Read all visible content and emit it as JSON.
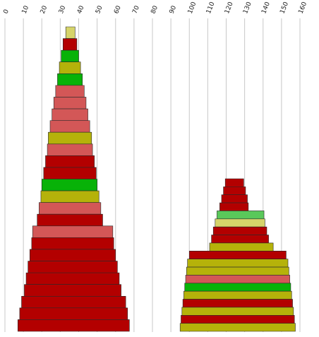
{
  "chart_data": {
    "type": "bar",
    "title": "",
    "xlabel": "",
    "ylabel": "",
    "xlim": [
      0,
      160
    ],
    "x_ticks": [
      "0",
      "10",
      "20",
      "30",
      "40",
      "50",
      "60",
      "70",
      "80",
      "90",
      "100",
      "110",
      "120",
      "130",
      "140",
      "150",
      "160"
    ],
    "grid": true,
    "legend": "none",
    "colors": {
      "red": "#b30000",
      "pink": "#d35757",
      "green": "#08b208",
      "olive": "#b5b20a",
      "yellow": "#d6d46a",
      "light_green": "#5ac85a"
    },
    "stacks": [
      {
        "bands": [
          {
            "x0": 33.0,
            "x1": 38.0,
            "color": "yellow"
          },
          {
            "x0": 31.5,
            "x1": 39.0,
            "color": "red"
          },
          {
            "x0": 30.5,
            "x1": 40.0,
            "color": "green"
          },
          {
            "x0": 29.5,
            "x1": 41.0,
            "color": "olive"
          },
          {
            "x0": 28.5,
            "x1": 42.0,
            "color": "green"
          },
          {
            "x0": 27.5,
            "x1": 43.0,
            "color": "pink"
          },
          {
            "x0": 26.5,
            "x1": 44.0,
            "color": "pink"
          },
          {
            "x0": 25.5,
            "x1": 45.0,
            "color": "pink"
          },
          {
            "x0": 24.5,
            "x1": 46.0,
            "color": "pink"
          },
          {
            "x0": 23.5,
            "x1": 47.0,
            "color": "olive"
          },
          {
            "x0": 23.0,
            "x1": 47.5,
            "color": "pink"
          },
          {
            "x0": 22.0,
            "x1": 48.5,
            "color": "red"
          },
          {
            "x0": 21.0,
            "x1": 49.5,
            "color": "red"
          },
          {
            "x0": 20.0,
            "x1": 50.0,
            "color": "green"
          },
          {
            "x0": 19.5,
            "x1": 51.0,
            "color": "olive"
          },
          {
            "x0": 18.5,
            "x1": 52.0,
            "color": "pink"
          },
          {
            "x0": 17.5,
            "x1": 53.0,
            "color": "red"
          },
          {
            "x0": 15.0,
            "x1": 58.5,
            "color": "pink"
          },
          {
            "x0": 14.5,
            "x1": 59.0,
            "color": "red"
          },
          {
            "x0": 13.5,
            "x1": 60.0,
            "color": "red"
          },
          {
            "x0": 12.5,
            "x1": 61.0,
            "color": "red"
          },
          {
            "x0": 11.5,
            "x1": 62.0,
            "color": "red"
          },
          {
            "x0": 10.5,
            "x1": 63.0,
            "color": "red"
          },
          {
            "x0": 9.0,
            "x1": 65.5,
            "color": "red"
          },
          {
            "x0": 8.0,
            "x1": 66.5,
            "color": "red"
          },
          {
            "x0": 7.0,
            "x1": 67.5,
            "color": "red"
          }
        ]
      },
      {
        "bands": [
          {
            "x0": 119.5,
            "x1": 129.5,
            "color": "red"
          },
          {
            "x0": 118.5,
            "x1": 130.5,
            "color": "red"
          },
          {
            "x0": 117.5,
            "x1": 131.5,
            "color": "red"
          },
          {
            "x0": 116.5,
            "x1": 132.0,
            "color": "red"
          },
          {
            "x0": 115.0,
            "x1": 140.5,
            "color": "light_green"
          },
          {
            "x0": 114.0,
            "x1": 141.0,
            "color": "yellow"
          },
          {
            "x0": 113.0,
            "x1": 142.0,
            "color": "red"
          },
          {
            "x0": 112.0,
            "x1": 143.0,
            "color": "red"
          },
          {
            "x0": 111.0,
            "x1": 145.5,
            "color": "olive"
          },
          {
            "x0": 100.0,
            "x1": 152.5,
            "color": "red"
          },
          {
            "x0": 99.0,
            "x1": 153.5,
            "color": "olive"
          },
          {
            "x0": 98.5,
            "x1": 154.0,
            "color": "olive"
          },
          {
            "x0": 98.0,
            "x1": 154.5,
            "color": "pink"
          },
          {
            "x0": 97.5,
            "x1": 155.0,
            "color": "green"
          },
          {
            "x0": 97.0,
            "x1": 155.5,
            "color": "olive"
          },
          {
            "x0": 96.5,
            "x1": 156.0,
            "color": "red"
          },
          {
            "x0": 96.0,
            "x1": 156.5,
            "color": "olive"
          },
          {
            "x0": 95.5,
            "x1": 157.0,
            "color": "red"
          },
          {
            "x0": 95.0,
            "x1": 157.5,
            "color": "olive"
          }
        ]
      }
    ]
  }
}
